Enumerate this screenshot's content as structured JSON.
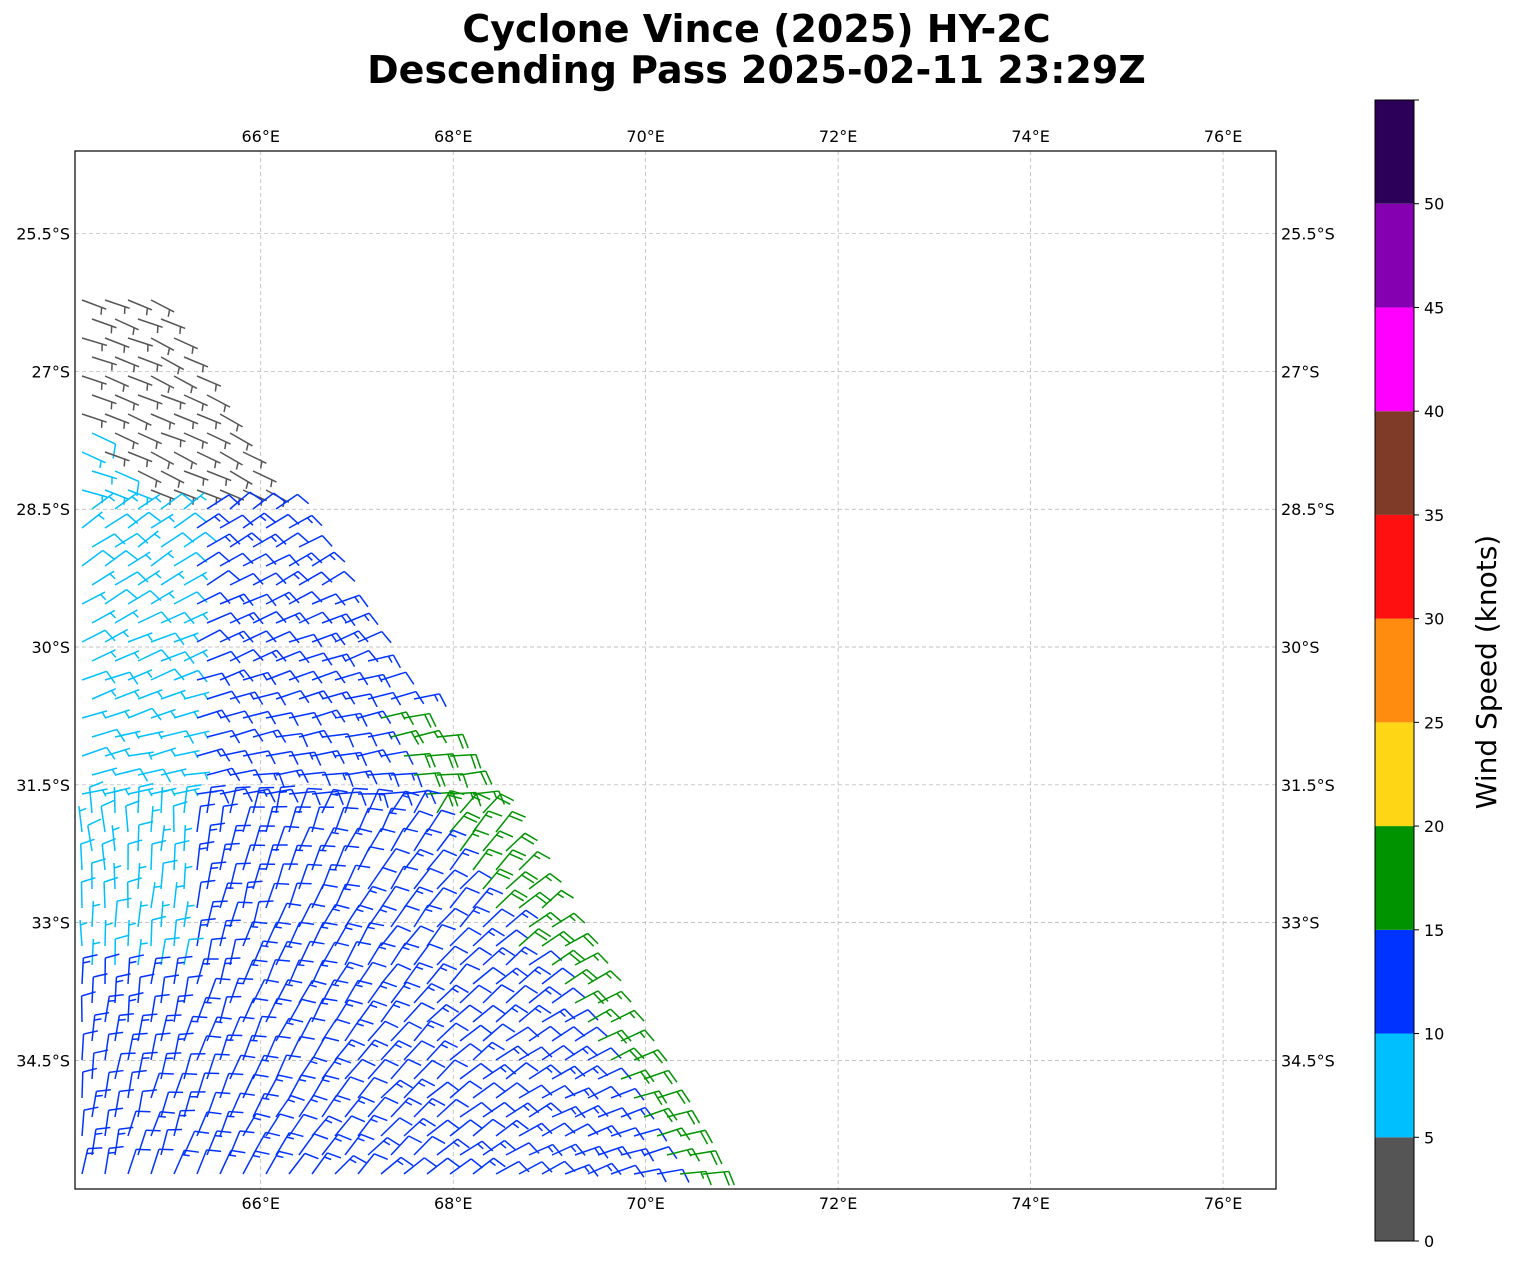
{
  "title_line1": "Cyclone Vince (2025) HY-2C",
  "title_line2": "Descending Pass 2025-02-11 23:29Z",
  "map": {
    "lon_range": [
      64.07,
      76.55
    ],
    "lat_range": [
      -35.9,
      -24.6
    ],
    "lon_ticks": [
      66,
      68,
      70,
      72,
      74,
      76
    ],
    "lon_tick_labels": [
      "66°E",
      "68°E",
      "70°E",
      "72°E",
      "74°E",
      "76°E"
    ],
    "lat_ticks": [
      -25.5,
      -27,
      -28.5,
      -30,
      -31.5,
      -33,
      -34.5
    ],
    "lat_tick_labels": [
      "25.5°S",
      "27°S",
      "28.5°S",
      "30°S",
      "31.5°S",
      "33°S",
      "34.5°S"
    ],
    "grid": true,
    "gridline_color": "#b0b0b0"
  },
  "colorbar": {
    "label": "Wind Speed (knots)",
    "bounds": [
      0,
      5,
      10,
      15,
      20,
      25,
      30,
      35,
      40,
      45,
      50,
      55
    ],
    "tick_labels": [
      "0",
      "5",
      "10",
      "15",
      "20",
      "25",
      "30",
      "35",
      "40",
      "45",
      "50"
    ],
    "colors": [
      "#555555",
      "#00bfff",
      "#0033ff",
      "#009300",
      "#ffd616",
      "#ff8c0f",
      "#ff1010",
      "#7f3a28",
      "#ff00ff",
      "#8400b0",
      "#2c0058"
    ]
  },
  "swath": {
    "description": "",
    "east_edge_start": {
      "lon": 64.9,
      "lat": -26.2
    },
    "east_edge_end": {
      "lon": 70.7,
      "lat": -35.6
    },
    "speed_bands_knots": [
      {
        "region": "north tip",
        "range": [
          0,
          5
        ]
      },
      {
        "region": "west",
        "range": [
          5,
          10
        ]
      },
      {
        "region": "central/south",
        "range": [
          10,
          15
        ]
      },
      {
        "region": "east edge streak",
        "range": [
          15,
          20
        ]
      }
    ]
  }
}
